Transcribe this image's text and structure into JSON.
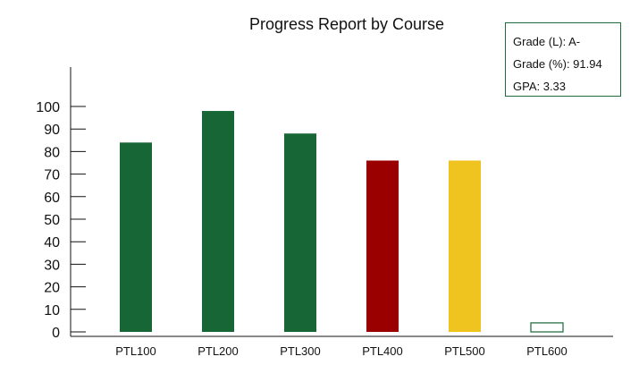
{
  "chart_data": {
    "type": "bar",
    "title": "Progress Report by Course",
    "categories": [
      "PTL100",
      "PTL200",
      "PTL300",
      "PTL400",
      "PTL500",
      "PTL600"
    ],
    "values": [
      84,
      98,
      88,
      76,
      76,
      4
    ],
    "bar_colors": [
      "#176636",
      "#176636",
      "#176636",
      "#9b0000",
      "#f0c41f",
      "#ffffff"
    ],
    "bar_border_colors": [
      "#176636",
      "#176636",
      "#176636",
      "#9b0000",
      "#f0c41f",
      "#176636"
    ],
    "ylim": [
      0,
      100
    ],
    "yticks": [
      0,
      10,
      20,
      30,
      40,
      50,
      60,
      70,
      80,
      90,
      100
    ],
    "xlabel": "",
    "ylabel": "",
    "grid": false,
    "legend": "none"
  },
  "summary": {
    "grade_letter": "Grade (L):  A-",
    "grade_percent": "Grade (%): 91.94",
    "gpa": "GPA: 3.33"
  }
}
